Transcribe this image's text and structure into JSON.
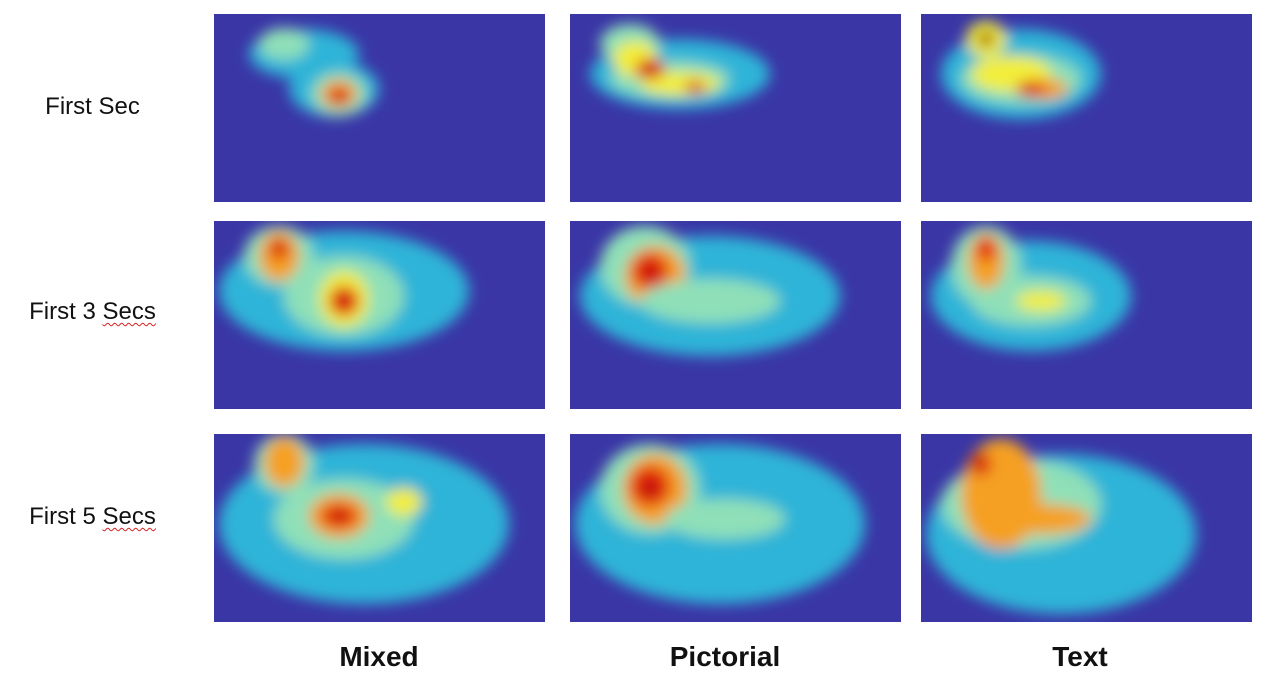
{
  "rows": [
    {
      "prefix": "First Sec",
      "underlined": ""
    },
    {
      "prefix": "First 3 ",
      "underlined": "Secs"
    },
    {
      "prefix": "First 5 ",
      "underlined": "Secs"
    }
  ],
  "columns": [
    "Mixed",
    "Pictorial",
    "Text"
  ],
  "colors": {
    "background": "#3a36a6",
    "colormap": [
      "#3a36a6",
      "#2fb4d8",
      "#8fe0b8",
      "#f2ee3a",
      "#f5a020",
      "#e0200c",
      "#8a0606",
      "#000000"
    ]
  }
}
